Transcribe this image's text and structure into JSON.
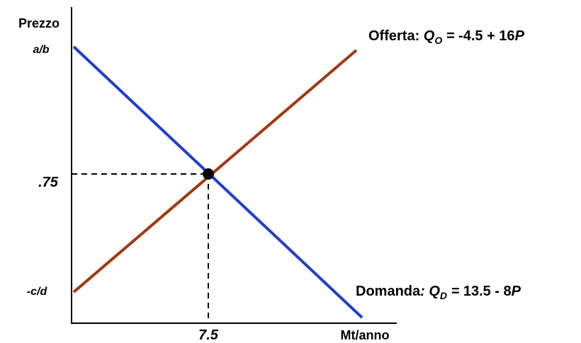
{
  "axes": {
    "y_label": "Prezzo",
    "x_label": "Mt/anno",
    "y_ticks": [
      "a/b",
      ".75",
      "-c/d"
    ],
    "x_ticks": [
      "7.5"
    ]
  },
  "supply_label": [
    "Offerta: ",
    "Q",
    "O",
    " = ",
    "-4.5 + 16",
    "P"
  ],
  "demand_label": [
    "Domanda",
    ": Q",
    "D",
    " = ",
    "13.5 - 8",
    "P"
  ]
}
